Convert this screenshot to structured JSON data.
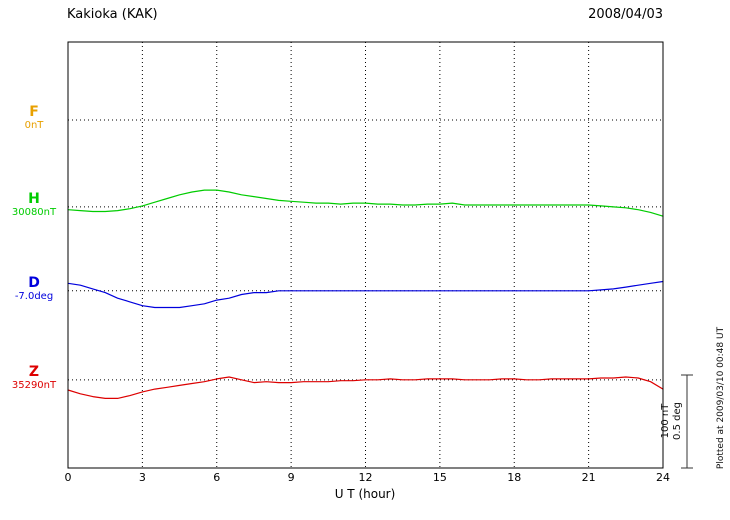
{
  "header": {
    "title": "Kakioka (KAK)",
    "date": "2008/04/03"
  },
  "xaxis": {
    "label": "U T (hour)"
  },
  "scale_bar": {
    "line1": "100 nT",
    "line2": "0.5 deg"
  },
  "side_note": "Plotted at 2009/03/10 00:48 UT",
  "chart_data": {
    "type": "line",
    "title": "Kakioka (KAK) magnetogram",
    "subtitle": "2008/04/03",
    "xlabel": "U T (hour)",
    "x_range": [
      0,
      24
    ],
    "x_ticks": [
      0,
      3,
      6,
      9,
      12,
      15,
      18,
      21,
      24
    ],
    "grid": "dotted vertical at 3h intervals, dotted horizontal baselines per component",
    "scale": {
      "nT_per_bar": 100,
      "deg_per_bar": 0.5
    },
    "x": [
      0,
      0.5,
      1,
      1.5,
      2,
      2.5,
      3,
      3.5,
      4,
      4.5,
      5,
      5.5,
      6,
      6.5,
      7,
      7.5,
      8,
      8.5,
      9,
      9.5,
      10,
      10.5,
      11,
      11.5,
      12,
      12.5,
      13,
      13.5,
      14,
      14.5,
      15,
      15.5,
      16,
      16.5,
      17,
      17.5,
      18,
      18.5,
      19,
      19.5,
      20,
      20.5,
      21,
      21.5,
      22,
      22.5,
      23,
      23.5,
      24
    ],
    "series": [
      {
        "name": "F",
        "ref_label": "0nT",
        "unit": "nT",
        "color": "#e8a000",
        "baseline_frac": 0.183,
        "offsets": []
      },
      {
        "name": "H",
        "ref_label": "30080nT",
        "unit": "nT",
        "color": "#00cc00",
        "baseline_frac": 0.387,
        "offsets": [
          -3,
          -4,
          -5,
          -5,
          -4,
          -2,
          1,
          5,
          9,
          13,
          16,
          18,
          18,
          16,
          13,
          11,
          9,
          7,
          6,
          5,
          4,
          4,
          3,
          4,
          4,
          3,
          3,
          2,
          2,
          3,
          3,
          4,
          2,
          2,
          2,
          2,
          2,
          2,
          2,
          2,
          2,
          2,
          2,
          1,
          0,
          -1,
          -3,
          -6,
          -10
        ]
      },
      {
        "name": "D",
        "ref_label": "-7.0deg",
        "unit": "deg",
        "color": "#0000dd",
        "baseline_frac": 0.584,
        "offsets": [
          0.04,
          0.03,
          0.01,
          -0.01,
          -0.04,
          -0.06,
          -0.08,
          -0.09,
          -0.09,
          -0.09,
          -0.08,
          -0.07,
          -0.05,
          -0.04,
          -0.02,
          -0.01,
          -0.01,
          0,
          0,
          0,
          0,
          0,
          0,
          0,
          0,
          0,
          0,
          0,
          0,
          0,
          0,
          0,
          0,
          0,
          0,
          0,
          0,
          0,
          0,
          0,
          0,
          0,
          0,
          0.005,
          0.01,
          0.02,
          0.03,
          0.04,
          0.05
        ]
      },
      {
        "name": "Z",
        "ref_label": "35290nT",
        "unit": "nT",
        "color": "#dd0000",
        "baseline_frac": 0.793,
        "offsets": [
          -11,
          -15,
          -18,
          -20,
          -20,
          -17,
          -13,
          -10,
          -8,
          -6,
          -4,
          -2,
          1,
          3,
          0,
          -3,
          -2,
          -3,
          -3,
          -2,
          -2,
          -2,
          -1,
          -1,
          0,
          0,
          1,
          0,
          0,
          1,
          1,
          1,
          0,
          0,
          0,
          1,
          1,
          0,
          0,
          1,
          1,
          1,
          1,
          2,
          2,
          3,
          2,
          -2,
          -10
        ]
      }
    ]
  }
}
